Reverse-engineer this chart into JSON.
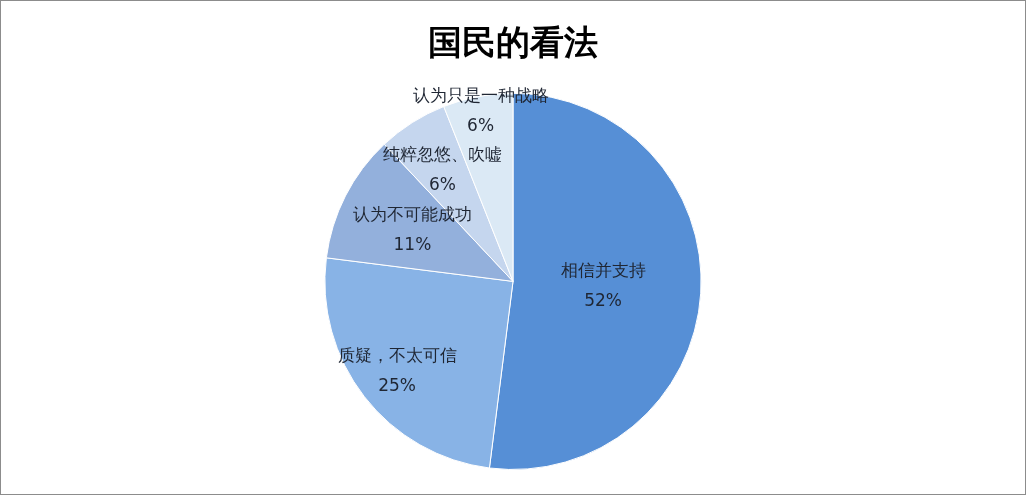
{
  "chart_data": {
    "type": "pie",
    "title": "国民的看法",
    "categories": [
      "相信并支持",
      "质疑，不太可信",
      "认为不可能成功",
      "纯粹忽悠、吹嘘",
      "认为只是一种战略"
    ],
    "values": [
      52,
      25,
      11,
      6,
      6
    ],
    "value_labels": [
      "52%",
      "25%",
      "11%",
      "6%",
      "6%"
    ],
    "colors": [
      "#568fd6",
      "#88b3e6",
      "#93b0dc",
      "#c5d6ee",
      "#dbe9f5"
    ],
    "legend": false
  }
}
